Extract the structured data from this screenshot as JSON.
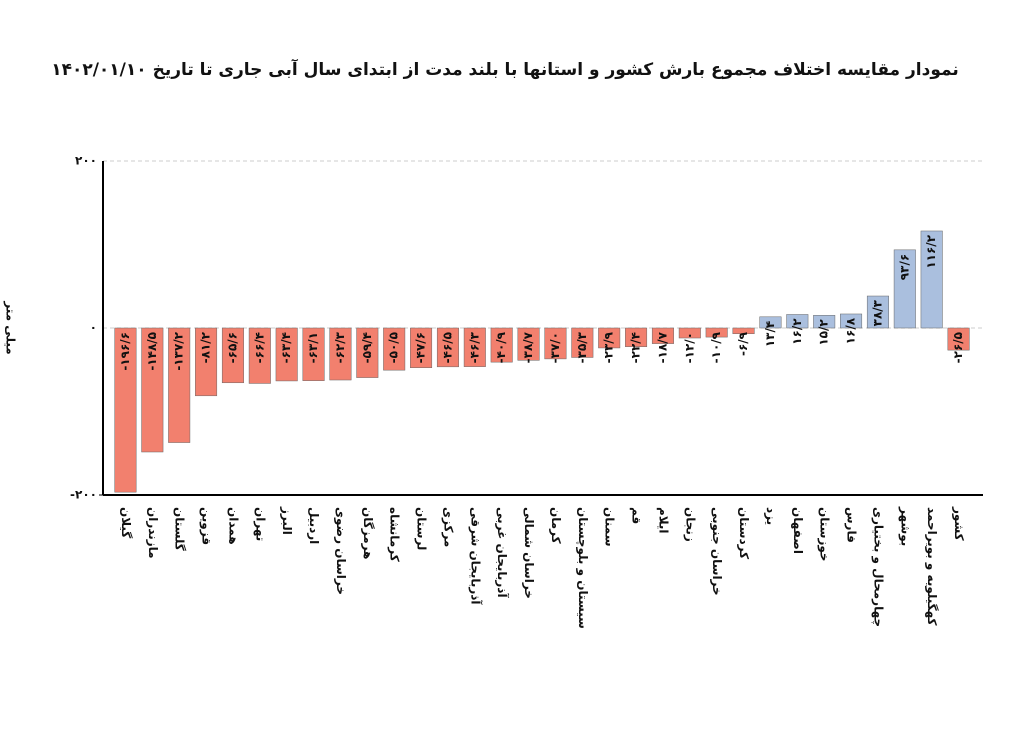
{
  "chart_data": {
    "type": "bar",
    "title": "نمودار مقایسه اختلاف مجموع بارش کشور و استانها با بلند مدت از ابتدای سال آبی جاری تا تاریخ ۱۴۰۲/۰۱/۱۰",
    "y_label": "میلی متر",
    "categories": [
      "گیلان",
      "مازندران",
      "گلستان",
      "قزوین",
      "همدان",
      "تهران",
      "البرز",
      "اردبیل",
      "خراسان رضوی",
      "هرمزگان",
      "کرمانشاه",
      "لرستان",
      "مرکزی",
      "آذربایجان شرقی",
      "آذربایجان غربی",
      "خراسان شمالی",
      "کرمان",
      "سیستان و بلوچستان",
      "سمنان",
      "قم",
      "ایلام",
      "زنجان",
      "خراسان جنوبی",
      "کردستان",
      "یزد",
      "اصفهان",
      "خوزستان",
      "فارس",
      "چهارمحال و بختیاری",
      "بوشهر",
      "کهگیلویه و بویراحمد",
      "کشور"
    ],
    "values": [
      -196.6,
      -148.5,
      -137.2,
      -81.2,
      -65.6,
      -66.4,
      -63.4,
      -63.1,
      -62.3,
      -59.4,
      -50.5,
      -47.6,
      -46.5,
      -46.3,
      -40.9,
      -38.7,
      -37.0,
      -35.3,
      -23.9,
      -22.4,
      -18.7,
      -12.0,
      -10.9,
      -6.9,
      13.4,
      16.2,
      15.2,
      16.8,
      38.3,
      93.6,
      116.2,
      -26.5
    ],
    "value_labels": [
      "-۱۹۶/۶",
      "-۱۴۸/۵",
      "-۱۳۷/۲",
      "-۸۱/۲",
      "-۶۵/۶",
      "-۶۶/۴",
      "-۶۳/۴",
      "-۶۳/۱",
      "-۶۲/۳",
      "-۵۹/۴",
      "-۵۰/۵",
      "-۴۷/۶",
      "-۴۶/۵",
      "-۴۶/۳",
      "-۴۰/۹",
      "-۳۸/۷",
      "-۳۷/۰",
      "-۳۵/۳",
      "-۲۳/۹",
      "-۲۲/۴",
      "-۱۸/۷",
      "-۱۲/۰",
      "-۱۰/۹",
      "-۶/۹",
      "۱۳/۴",
      "۱۶/۲",
      "۱۵/۲",
      "۱۶/۸",
      "۳۸/۳",
      "۹۳/۶",
      "۱۱۶/۲",
      "-۲۶/۵"
    ],
    "positive_color": "#aabfde",
    "negative_color": "#f2806e",
    "ylim": [
      -200,
      200
    ],
    "yticks": [
      {
        "value": -200,
        "label": "-۲۰۰"
      },
      {
        "value": 0,
        "label": "۰"
      },
      {
        "value": 200,
        "label": "۲۰۰"
      }
    ],
    "grid": true
  }
}
